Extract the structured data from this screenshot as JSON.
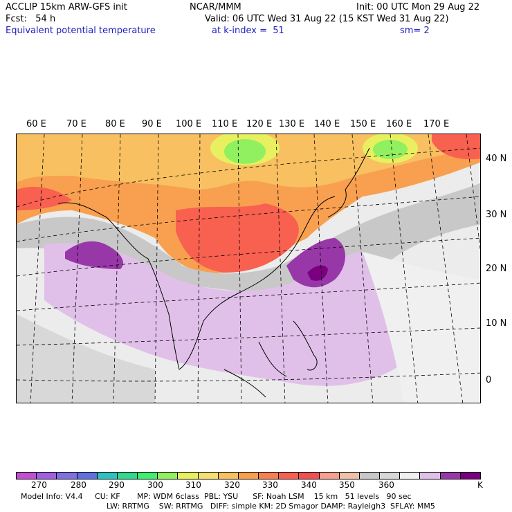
{
  "header": {
    "line1_left": "ACCLIP 15km ARW-GFS init",
    "line1_center": "NCAR/MMM",
    "line1_right": "Init: 00 UTC Mon 29 Aug 22",
    "line2_left": "Fcst:   54 h",
    "line2_right": "Valid: 06 UTC Wed 31 Aug 22 (15 KST Wed 31 Aug 22)",
    "line3_left": "Equivalent potential temperature",
    "line3_center": "at k-index =  51",
    "line3_right": "sm= 2"
  },
  "map": {
    "lon_labels": [
      "60 E",
      "70 E",
      "80 E",
      "90 E",
      "100 E",
      "110 E",
      "120 E",
      "130 E",
      "140 E",
      "150 E",
      "160 E",
      "170 E"
    ],
    "lat_labels": [
      "40 N",
      "30 N",
      "20 N",
      "10 N",
      "0"
    ]
  },
  "colorbar": {
    "colors": [
      "#c050d0",
      "#a060e0",
      "#8070e0",
      "#6070e0",
      "#30c0c0",
      "#30d890",
      "#40ee70",
      "#90f060",
      "#e8f060",
      "#f8e070",
      "#f8c060",
      "#f8a050",
      "#f88050",
      "#f86050",
      "#f05050",
      "#f8a090",
      "#f0c0a8",
      "#c8c8c8",
      "#d8d8d8",
      "#f0f0f0",
      "#e0c0e8",
      "#9838a8",
      "#7a0080"
    ],
    "ticks": [
      "270",
      "280",
      "290",
      "300",
      "310",
      "320",
      "330",
      "340",
      "350",
      "360"
    ],
    "unit": "K"
  },
  "footer": {
    "line1": "Model Info: V4.4     CU: KF       MP: WDM 6class  PBL: YSU      SF: Noah LSM    15 km   51 levels   90 sec",
    "line2": "LW: RRTMG    SW: RRTMG   DIFF: simple KM: 2D Smagor DAMP: Rayleigh3  SFLAY: MM5"
  }
}
